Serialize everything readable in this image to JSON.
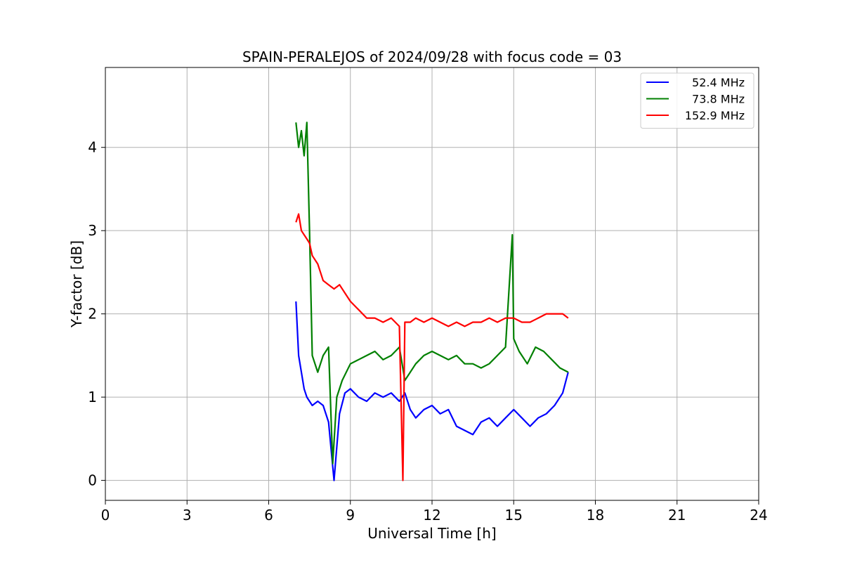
{
  "chart_data": {
    "type": "line",
    "title": "SPAIN-PERALEJOS of 2024/09/28 with focus code = 03",
    "xlabel": "Universal Time [h]",
    "ylabel": "Y-factor [dB]",
    "xlim": [
      0,
      24
    ],
    "ylim": [
      -0.24,
      4.96
    ],
    "xticks": [
      0,
      3,
      6,
      9,
      12,
      15,
      18,
      21,
      24
    ],
    "yticks": [
      0,
      1,
      2,
      3,
      4
    ],
    "grid": true,
    "legend_position": "top-right",
    "series": [
      {
        "name": "52.4 MHz",
        "color": "#0000ff",
        "x": [
          7.0,
          7.1,
          7.2,
          7.3,
          7.4,
          7.5,
          7.6,
          7.8,
          8.0,
          8.2,
          8.4,
          8.6,
          8.8,
          9.0,
          9.3,
          9.6,
          9.9,
          10.2,
          10.5,
          10.8,
          11.0,
          11.2,
          11.4,
          11.7,
          12.0,
          12.3,
          12.6,
          12.9,
          13.2,
          13.5,
          13.8,
          14.1,
          14.4,
          14.7,
          15.0,
          15.3,
          15.6,
          15.9,
          16.2,
          16.5,
          16.8,
          17.0
        ],
        "y": [
          2.15,
          1.5,
          1.3,
          1.1,
          1.0,
          0.95,
          0.9,
          0.95,
          0.9,
          0.7,
          0.0,
          0.8,
          1.05,
          1.1,
          1.0,
          0.95,
          1.05,
          1.0,
          1.05,
          0.95,
          1.05,
          0.85,
          0.75,
          0.85,
          0.9,
          0.8,
          0.85,
          0.65,
          0.6,
          0.55,
          0.7,
          0.75,
          0.65,
          0.75,
          0.85,
          0.75,
          0.65,
          0.75,
          0.8,
          0.9,
          1.05,
          1.3
        ]
      },
      {
        "name": "73.8 MHz",
        "color": "#008000",
        "x": [
          7.0,
          7.1,
          7.2,
          7.3,
          7.4,
          7.5,
          7.6,
          7.8,
          8.0,
          8.2,
          8.35,
          8.5,
          8.7,
          9.0,
          9.3,
          9.6,
          9.9,
          10.2,
          10.5,
          10.8,
          11.0,
          11.2,
          11.4,
          11.7,
          12.0,
          12.3,
          12.6,
          12.9,
          13.2,
          13.5,
          13.8,
          14.1,
          14.4,
          14.7,
          14.95,
          15.0,
          15.2,
          15.5,
          15.8,
          16.1,
          16.4,
          16.7,
          17.0
        ],
        "y": [
          4.3,
          4.0,
          4.2,
          3.9,
          4.3,
          3.0,
          1.5,
          1.3,
          1.5,
          1.6,
          0.2,
          1.0,
          1.2,
          1.4,
          1.45,
          1.5,
          1.55,
          1.45,
          1.5,
          1.6,
          1.2,
          1.3,
          1.4,
          1.5,
          1.55,
          1.5,
          1.45,
          1.5,
          1.4,
          1.4,
          1.35,
          1.4,
          1.5,
          1.6,
          2.95,
          1.7,
          1.55,
          1.4,
          1.6,
          1.55,
          1.45,
          1.35,
          1.3
        ]
      },
      {
        "name": "152.9 MHz",
        "color": "#ff0000",
        "x": [
          7.0,
          7.1,
          7.2,
          7.3,
          7.4,
          7.5,
          7.6,
          7.8,
          8.0,
          8.2,
          8.4,
          8.6,
          8.8,
          9.0,
          9.3,
          9.6,
          9.9,
          10.2,
          10.5,
          10.8,
          10.93,
          11.0,
          11.2,
          11.4,
          11.7,
          12.0,
          12.3,
          12.6,
          12.9,
          13.2,
          13.5,
          13.8,
          14.1,
          14.4,
          14.7,
          15.0,
          15.3,
          15.6,
          15.9,
          16.2,
          16.5,
          16.8,
          17.0
        ],
        "y": [
          3.1,
          3.2,
          3.0,
          2.95,
          2.9,
          2.85,
          2.7,
          2.6,
          2.4,
          2.35,
          2.3,
          2.35,
          2.25,
          2.15,
          2.05,
          1.95,
          1.95,
          1.9,
          1.95,
          1.85,
          0.0,
          1.9,
          1.9,
          1.95,
          1.9,
          1.95,
          1.9,
          1.85,
          1.9,
          1.85,
          1.9,
          1.9,
          1.95,
          1.9,
          1.95,
          1.95,
          1.9,
          1.9,
          1.95,
          2.0,
          2.0,
          2.0,
          1.95
        ]
      }
    ]
  }
}
